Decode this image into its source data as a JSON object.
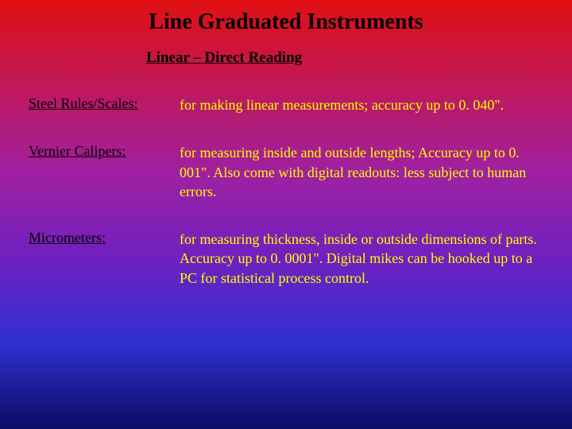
{
  "title": "Line Graduated Instruments",
  "subtitle": "Linear – Direct Reading",
  "rows": [
    {
      "label": "Steel Rules/Scales:",
      "desc": "for making linear measurements; accuracy up to  0. 040\"."
    },
    {
      "label": "Vernier Calipers:",
      "desc": "for measuring inside and outside lengths; Accuracy up to 0. 001\".  Also come with digital readouts: less subject to human errors."
    },
    {
      "label": "Micrometers:",
      "desc": "for measuring thickness, inside or outside dimensions of parts.  Accuracy up to 0. 0001\".  Digital mikes can be hooked up to a PC for statistical process control."
    }
  ],
  "colors": {
    "title_color": "#000000",
    "label_color": "#000000",
    "desc_color": "#ffff00"
  }
}
